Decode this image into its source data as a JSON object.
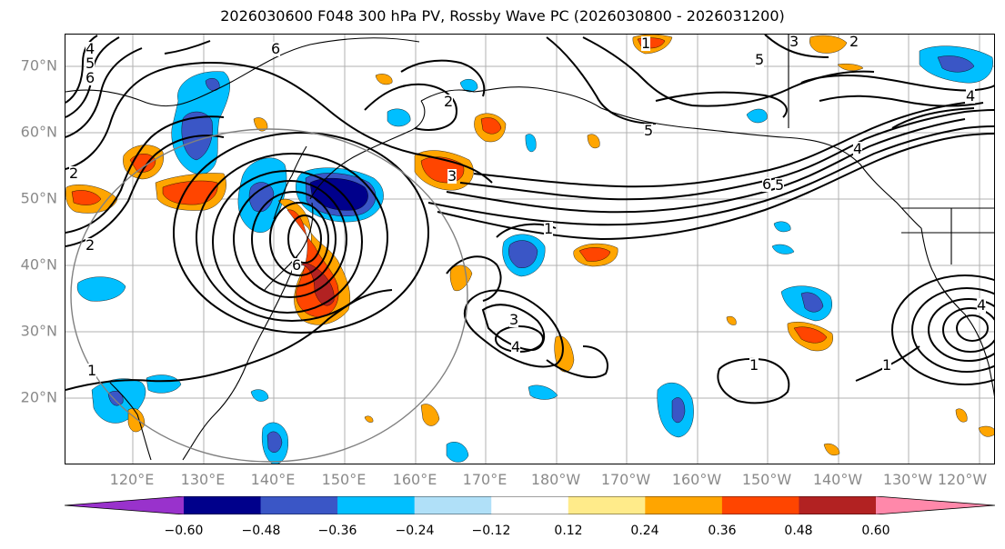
{
  "title": "2026030600 F048 300 hPa PV, Rossby Wave PC (2026030800 - 2026031200)",
  "lat_labels": [
    "70°N",
    "60°N",
    "50°N",
    "40°N",
    "30°N",
    "20°N"
  ],
  "lon_labels": [
    "120°E",
    "130°E",
    "140°E",
    "150°E",
    "160°E",
    "170°E",
    "180°W",
    "170°W",
    "160°W",
    "150°W",
    "140°W",
    "130°W",
    "120°W"
  ],
  "colorbar": {
    "ticks": [
      "−0.60",
      "−0.48",
      "−0.36",
      "−0.24",
      "−0.12",
      "0.12",
      "0.24",
      "0.36",
      "0.48",
      "0.60"
    ],
    "colors": [
      "#9932cc",
      "#00008b",
      "#3a56c6",
      "#00bfff",
      "#b0e0f8",
      "#ffffff",
      "#ffeb8a",
      "#ffa500",
      "#ff4500",
      "#b22222",
      "#ff88aa"
    ]
  },
  "contour_labels": [
    "4",
    "5",
    "6",
    "2",
    "1",
    "2",
    "6",
    "2",
    "3",
    "1",
    "3",
    "4",
    "5",
    "3",
    "2",
    "5",
    "4",
    "6",
    "5",
    "1",
    "6",
    "3",
    "4",
    "1",
    "1",
    "4"
  ],
  "map_colors": {
    "grid": "#b0b0b0",
    "contour": "#000000",
    "coast": "#000000",
    "circle": "#808080"
  }
}
